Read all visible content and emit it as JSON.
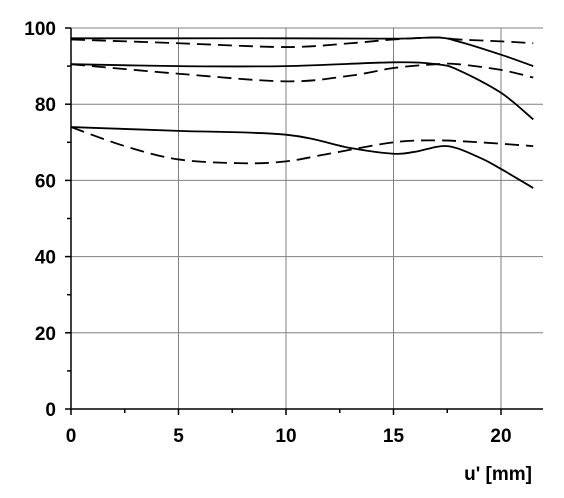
{
  "chart_data": {
    "type": "line",
    "title": "",
    "xlabel": "u' [mm]",
    "ylabel": "",
    "xlim": [
      0,
      22
    ],
    "ylim": [
      0,
      100
    ],
    "xticks": [
      0,
      5,
      10,
      15,
      20
    ],
    "yticks": [
      0,
      20,
      40,
      60,
      80,
      100
    ],
    "grid": true,
    "legend": "none",
    "colors": {
      "line": "#000000",
      "grid": "#808080",
      "axis": "#000000"
    },
    "series": [
      {
        "style": "solid",
        "x": [
          0,
          5,
          10,
          15,
          17,
          18,
          20,
          21.5
        ],
        "y": [
          97.3,
          97.3,
          97.3,
          97.2,
          97.5,
          96.5,
          93,
          90
        ]
      },
      {
        "style": "dashed",
        "x": [
          0,
          5,
          10,
          13,
          15,
          17,
          18,
          20,
          21.5
        ],
        "y": [
          97,
          96,
          95,
          96,
          97,
          97.5,
          97,
          96.5,
          96
        ]
      },
      {
        "style": "solid",
        "x": [
          0,
          5,
          10,
          15,
          17,
          18,
          20,
          21.5
        ],
        "y": [
          90.5,
          90,
          90,
          91,
          90.5,
          89,
          83,
          76
        ]
      },
      {
        "style": "dashed",
        "x": [
          0,
          5,
          10,
          13,
          15,
          17,
          18,
          20,
          21.5
        ],
        "y": [
          90.5,
          88,
          86,
          87.5,
          89.5,
          90.5,
          90.5,
          89,
          87
        ]
      },
      {
        "style": "solid",
        "x": [
          0,
          5,
          10,
          13,
          15,
          16,
          17.5,
          19,
          20,
          21.5
        ],
        "y": [
          74,
          73,
          72,
          68.5,
          67,
          67.5,
          69,
          66,
          63,
          58
        ]
      },
      {
        "style": "dashed",
        "x": [
          0,
          2.5,
          5,
          8,
          10,
          12,
          15,
          17,
          19,
          21.5
        ],
        "y": [
          74,
          69,
          65.5,
          64.5,
          65,
          67,
          70,
          70.5,
          70,
          69
        ]
      }
    ]
  }
}
